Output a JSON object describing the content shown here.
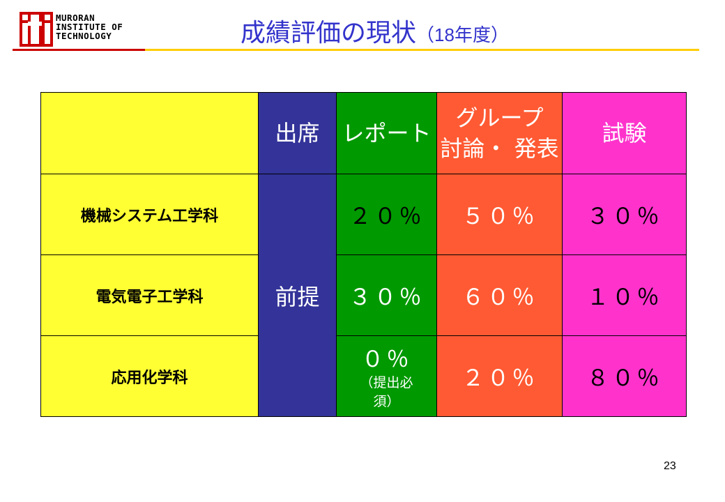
{
  "logo": {
    "lines": [
      "MURORAN",
      "INSTITUTE OF",
      "TECHNOLOGY"
    ],
    "mark_text": "iti",
    "color": "#cc0000"
  },
  "title": {
    "main": "成績評価の現状",
    "sub_open": "（",
    "sub_year": "18",
    "sub_tail": "年度）"
  },
  "colors": {
    "yellow": "#ffff33",
    "blue": "#333399",
    "green": "#009900",
    "orange": "#ff5a33",
    "magenta": "#ff33cc",
    "title_blue": "#3333cc"
  },
  "table": {
    "headers": {
      "attendance": "出席",
      "report": "レポート",
      "group_line1": "グループ",
      "group_line2": "討論・ 発表",
      "exam": "試験"
    },
    "premise": "前提",
    "rows": [
      {
        "dept": "機械システム工学科",
        "report": "２０％",
        "group": "５０％",
        "exam": "３０％"
      },
      {
        "dept": "電気電子工学科",
        "report": "３０％",
        "group": "６０％",
        "exam": "１０％"
      },
      {
        "dept": "応用化学科",
        "report": "０％",
        "report_note_line1": "（提出必",
        "report_note_line2": "須）",
        "group": "２０％",
        "exam": "８０％"
      }
    ]
  },
  "page_number": "23"
}
